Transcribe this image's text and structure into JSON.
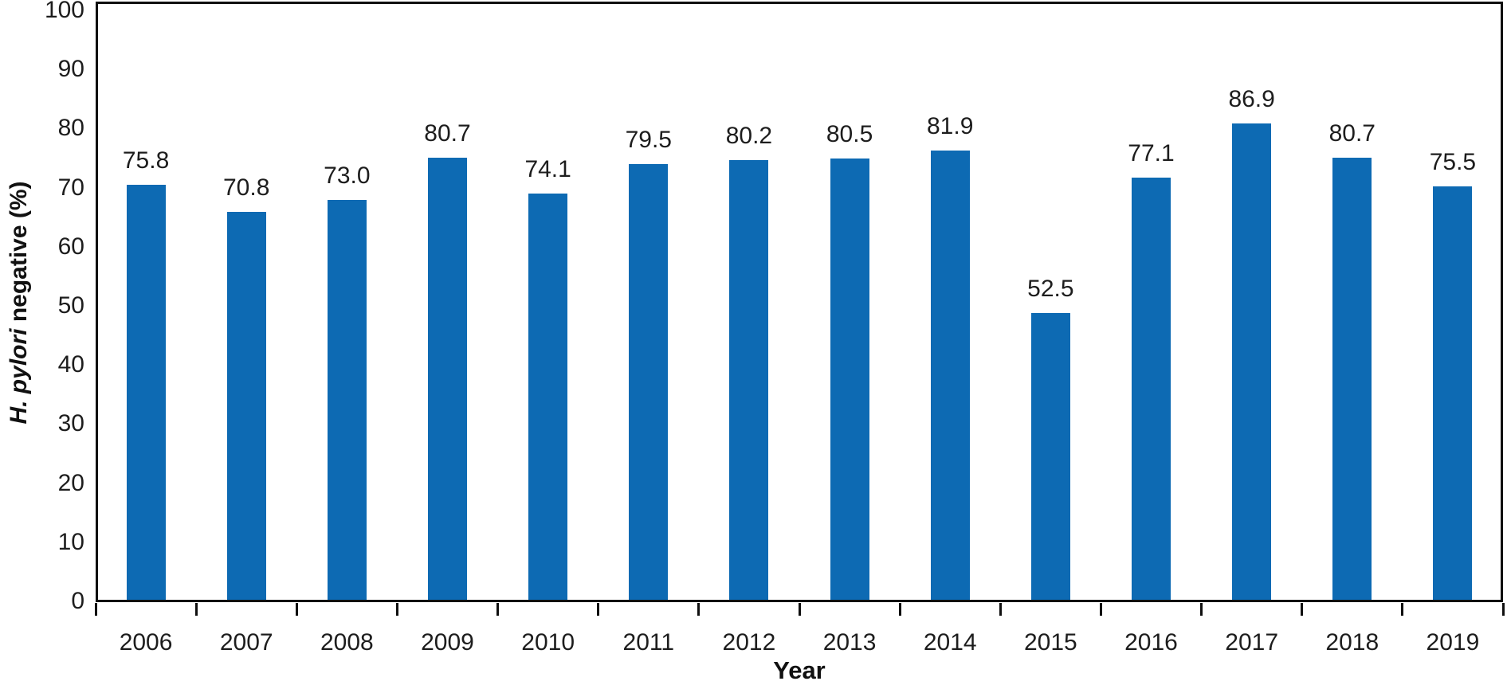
{
  "chart_data": {
    "type": "bar",
    "title": "",
    "xlabel": "Year",
    "ylabel": "H. pylori negative (%)",
    "ylabel_parts": {
      "italic": "H. pylori",
      "rest": " negative (%)"
    },
    "categories": [
      "2006",
      "2007",
      "2008",
      "2009",
      "2010",
      "2011",
      "2012",
      "2013",
      "2014",
      "2015",
      "2016",
      "2017",
      "2018",
      "2019"
    ],
    "values": [
      75.8,
      70.8,
      73.0,
      80.7,
      74.1,
      79.5,
      80.2,
      80.5,
      81.9,
      52.5,
      77.1,
      86.9,
      80.7,
      75.5
    ],
    "data_labels": [
      "75.8",
      "70.8",
      "73.0",
      "80.7",
      "74.1",
      "79.5",
      "80.2",
      "80.5",
      "81.9",
      "52.5",
      "77.1",
      "86.9",
      "80.7",
      "75.5"
    ],
    "ylim": [
      0,
      100
    ],
    "yticks": [
      0,
      10,
      20,
      30,
      40,
      50,
      60,
      70,
      80,
      90,
      100
    ],
    "grid": false,
    "legend": null,
    "bar_color": "#0d6ab3",
    "axis_color": "#0f0f0f",
    "text_color": "#1d1d1d",
    "bar_draw_scale": 0.934
  }
}
